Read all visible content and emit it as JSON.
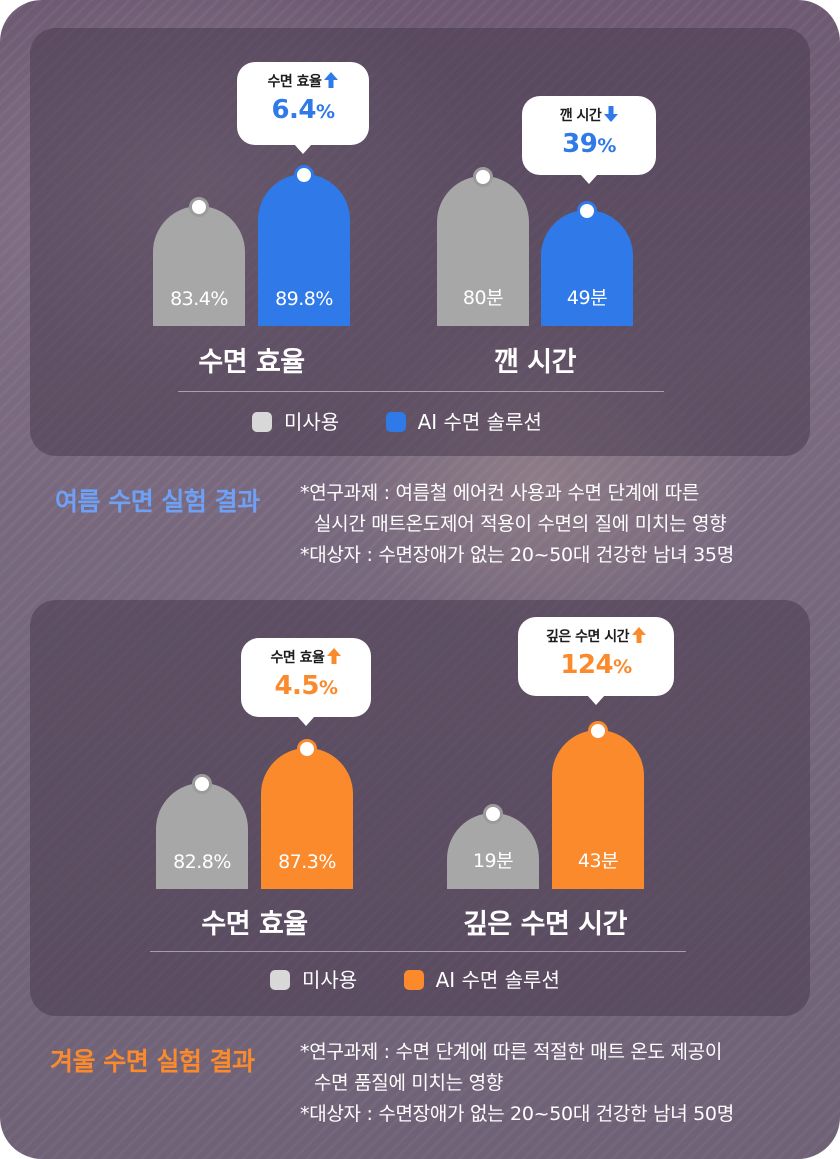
{
  "colors": {
    "gray": "#a7a7a8",
    "blue": "#2f7ae8",
    "orange": "#fb8a2d",
    "summer_title": "#6ea0f5",
    "winter_title": "#fb8a2d"
  },
  "summer": {
    "section_title": "여름 수면 실험 결과",
    "notes": [
      "*연구과제 : 여름철 에어컨 사용과 수면 단계에 따른",
      "실시간 매트온도제어 적용이 수면의 질에 미치는 영향",
      "*대상자 : 수면장애가 없는 20~50대 건강한 남녀 35명"
    ],
    "legend": [
      "미사용",
      "AI 수면 솔루션"
    ],
    "callouts": [
      {
        "label": "수면 효율",
        "number": "6.4",
        "unit": "%",
        "icon": "arrow-up-icon"
      },
      {
        "label": "깬 시간",
        "number": "39",
        "unit": "%",
        "icon": "arrow-down-icon"
      }
    ]
  },
  "winter": {
    "section_title": "겨울 수면 실험 결과",
    "notes": [
      "*연구과제 : 수면 단계에 따른 적절한 매트 온도 제공이",
      "수면 품질에 미치는 영향",
      "*대상자 : 수면장애가 없는 20~50대 건강한 남녀 50명"
    ],
    "legend": [
      "미사용",
      "AI 수면 솔루션"
    ],
    "callouts": [
      {
        "label": "수면 효율",
        "number": "4.5",
        "unit": "%",
        "icon": "arrow-up-icon"
      },
      {
        "label": "깊은 수면 시간",
        "number": "124",
        "unit": "%",
        "icon": "arrow-up-icon"
      }
    ]
  },
  "chart_data": [
    {
      "type": "bar",
      "title": "수면 효율",
      "series": [
        {
          "name": "미사용",
          "values": [
            83.4
          ],
          "labels": [
            "83.4%"
          ]
        },
        {
          "name": "AI 수면 솔루션",
          "values": [
            89.8
          ],
          "labels": [
            "89.8%"
          ]
        }
      ],
      "legend_position": "bottom"
    },
    {
      "type": "bar",
      "title": "깬 시간",
      "series": [
        {
          "name": "미사용",
          "values": [
            80
          ],
          "labels": [
            "80분"
          ]
        },
        {
          "name": "AI 수면 솔루션",
          "values": [
            49
          ],
          "labels": [
            "49분"
          ]
        }
      ],
      "legend_position": "bottom"
    },
    {
      "type": "bar",
      "title": "수면 효율",
      "series": [
        {
          "name": "미사용",
          "values": [
            82.8
          ],
          "labels": [
            "82.8%"
          ]
        },
        {
          "name": "AI 수면 솔루션",
          "values": [
            87.3
          ],
          "labels": [
            "87.3%"
          ]
        }
      ],
      "legend_position": "bottom"
    },
    {
      "type": "bar",
      "title": "깊은 수면 시간",
      "series": [
        {
          "name": "미사용",
          "values": [
            19
          ],
          "labels": [
            "19분"
          ]
        },
        {
          "name": "AI 수면 솔루션",
          "values": [
            43
          ],
          "labels": [
            "43분"
          ]
        }
      ],
      "legend_position": "bottom"
    }
  ]
}
